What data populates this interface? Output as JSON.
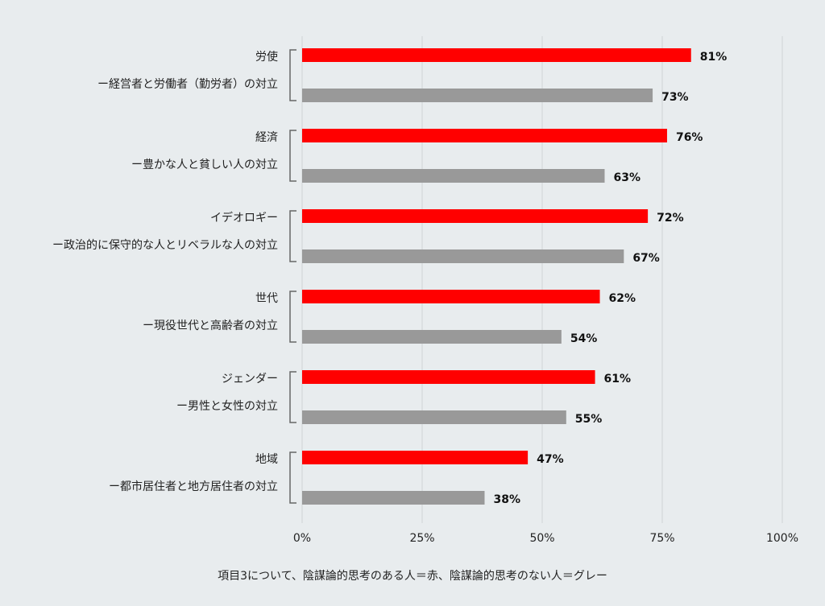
{
  "chart_data": {
    "type": "bar",
    "orientation": "horizontal",
    "categories": [
      {
        "title": "労使",
        "subtitle": "ー経営者と労働者（勤労者）の対立"
      },
      {
        "title": "経済",
        "subtitle": "ー豊かな人と貧しい人の対立"
      },
      {
        "title": "イデオロギー",
        "subtitle": "ー政治的に保守的な人とリベラルな人の対立"
      },
      {
        "title": "世代",
        "subtitle": "ー現役世代と高齢者の対立"
      },
      {
        "title": "ジェンダー",
        "subtitle": "ー男性と女性の対立"
      },
      {
        "title": "地域",
        "subtitle": "ー都市居住者と地方居住者の対立"
      }
    ],
    "series": [
      {
        "color": "#ff0000",
        "values": [
          81,
          76,
          72,
          62,
          61,
          47
        ]
      },
      {
        "color": "#999999",
        "values": [
          73,
          63,
          67,
          54,
          55,
          38
        ]
      }
    ],
    "value_suffix": "%",
    "xlim": [
      0,
      100
    ],
    "xticks": [
      0,
      25,
      50,
      75,
      100
    ],
    "xtick_labels": [
      "0%",
      "25%",
      "50%",
      "75%",
      "100%"
    ],
    "grid": true,
    "note": "項目3について、陰謀論的思考のある人＝赤、陰謀論的思考のない人＝グレー"
  }
}
